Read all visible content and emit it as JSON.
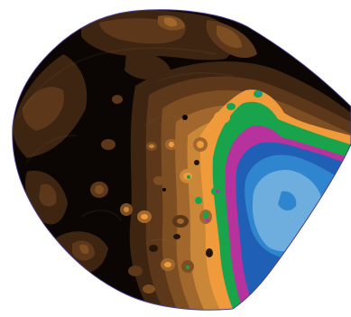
{
  "map": {
    "kind": "filled contour map",
    "outline_color": "#4b3d8f",
    "background": "#ffffff",
    "palette": {
      "level_0": "#0b0603",
      "level_1": "#24150b",
      "level_2": "#3d2512",
      "level_3": "#5c3719",
      "level_4": "#7e4e23",
      "level_5": "#a2672c",
      "level_6": "#c98737",
      "level_7": "#ef9a3b",
      "level_8": "#19a34b",
      "level_9": "#b7329d",
      "level_10": "#1f5fb6",
      "level_11": "#2f86cf",
      "level_12": "#6eaedf"
    }
  }
}
